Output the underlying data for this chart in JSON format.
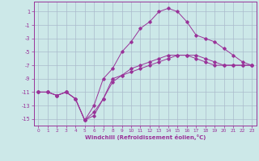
{
  "xlabel": "Windchill (Refroidissement éolien,°C)",
  "background_color": "#cce8e8",
  "grid_color": "#aabbcc",
  "line_color": "#993399",
  "xlim": [
    -0.5,
    23.5
  ],
  "ylim": [
    -16,
    2.5
  ],
  "yticks": [
    1,
    -1,
    -3,
    -5,
    -7,
    -9,
    -11,
    -13,
    -15
  ],
  "xticks": [
    0,
    1,
    2,
    3,
    4,
    5,
    6,
    7,
    8,
    9,
    10,
    11,
    12,
    13,
    14,
    15,
    16,
    17,
    18,
    19,
    20,
    21,
    22,
    23
  ],
  "line1_x": [
    0,
    1,
    2,
    3,
    4,
    5,
    6,
    7,
    8,
    9,
    10,
    11,
    12,
    13,
    14,
    15,
    16,
    17,
    18,
    19,
    20,
    21,
    22,
    23
  ],
  "line1_y": [
    -11,
    -11,
    -11.5,
    -11,
    -12,
    -15.2,
    -14.5,
    -12,
    -9,
    -8.5,
    -8,
    -7.5,
    -7,
    -6.5,
    -6,
    -5.5,
    -5.5,
    -5.5,
    -6,
    -6.5,
    -7,
    -7,
    -7,
    -7
  ],
  "line2_x": [
    0,
    1,
    2,
    3,
    4,
    5,
    6,
    7,
    8,
    9,
    10,
    11,
    12,
    13,
    14,
    15,
    16,
    17,
    18,
    19,
    20,
    21,
    22,
    23
  ],
  "line2_y": [
    -11,
    -11,
    -11.5,
    -11,
    -12,
    -15.2,
    -13,
    -9,
    -7.5,
    -5,
    -3.5,
    -1.5,
    -0.5,
    1,
    1.5,
    1,
    -0.5,
    -2.5,
    -3,
    -3.5,
    -4.5,
    -5.5,
    -6.5,
    -7
  ],
  "line3_x": [
    0,
    1,
    2,
    3,
    4,
    5,
    6,
    7,
    8,
    9,
    10,
    11,
    12,
    13,
    14,
    15,
    16,
    17,
    18,
    19,
    20,
    21,
    22,
    23
  ],
  "line3_y": [
    -11,
    -11,
    -11.5,
    -11,
    -12,
    -15.2,
    -14,
    -12,
    -9.5,
    -8.5,
    -7.5,
    -7,
    -6.5,
    -6,
    -5.5,
    -5.5,
    -5.5,
    -6,
    -6.5,
    -7,
    -7,
    -7,
    -7,
    -7
  ]
}
